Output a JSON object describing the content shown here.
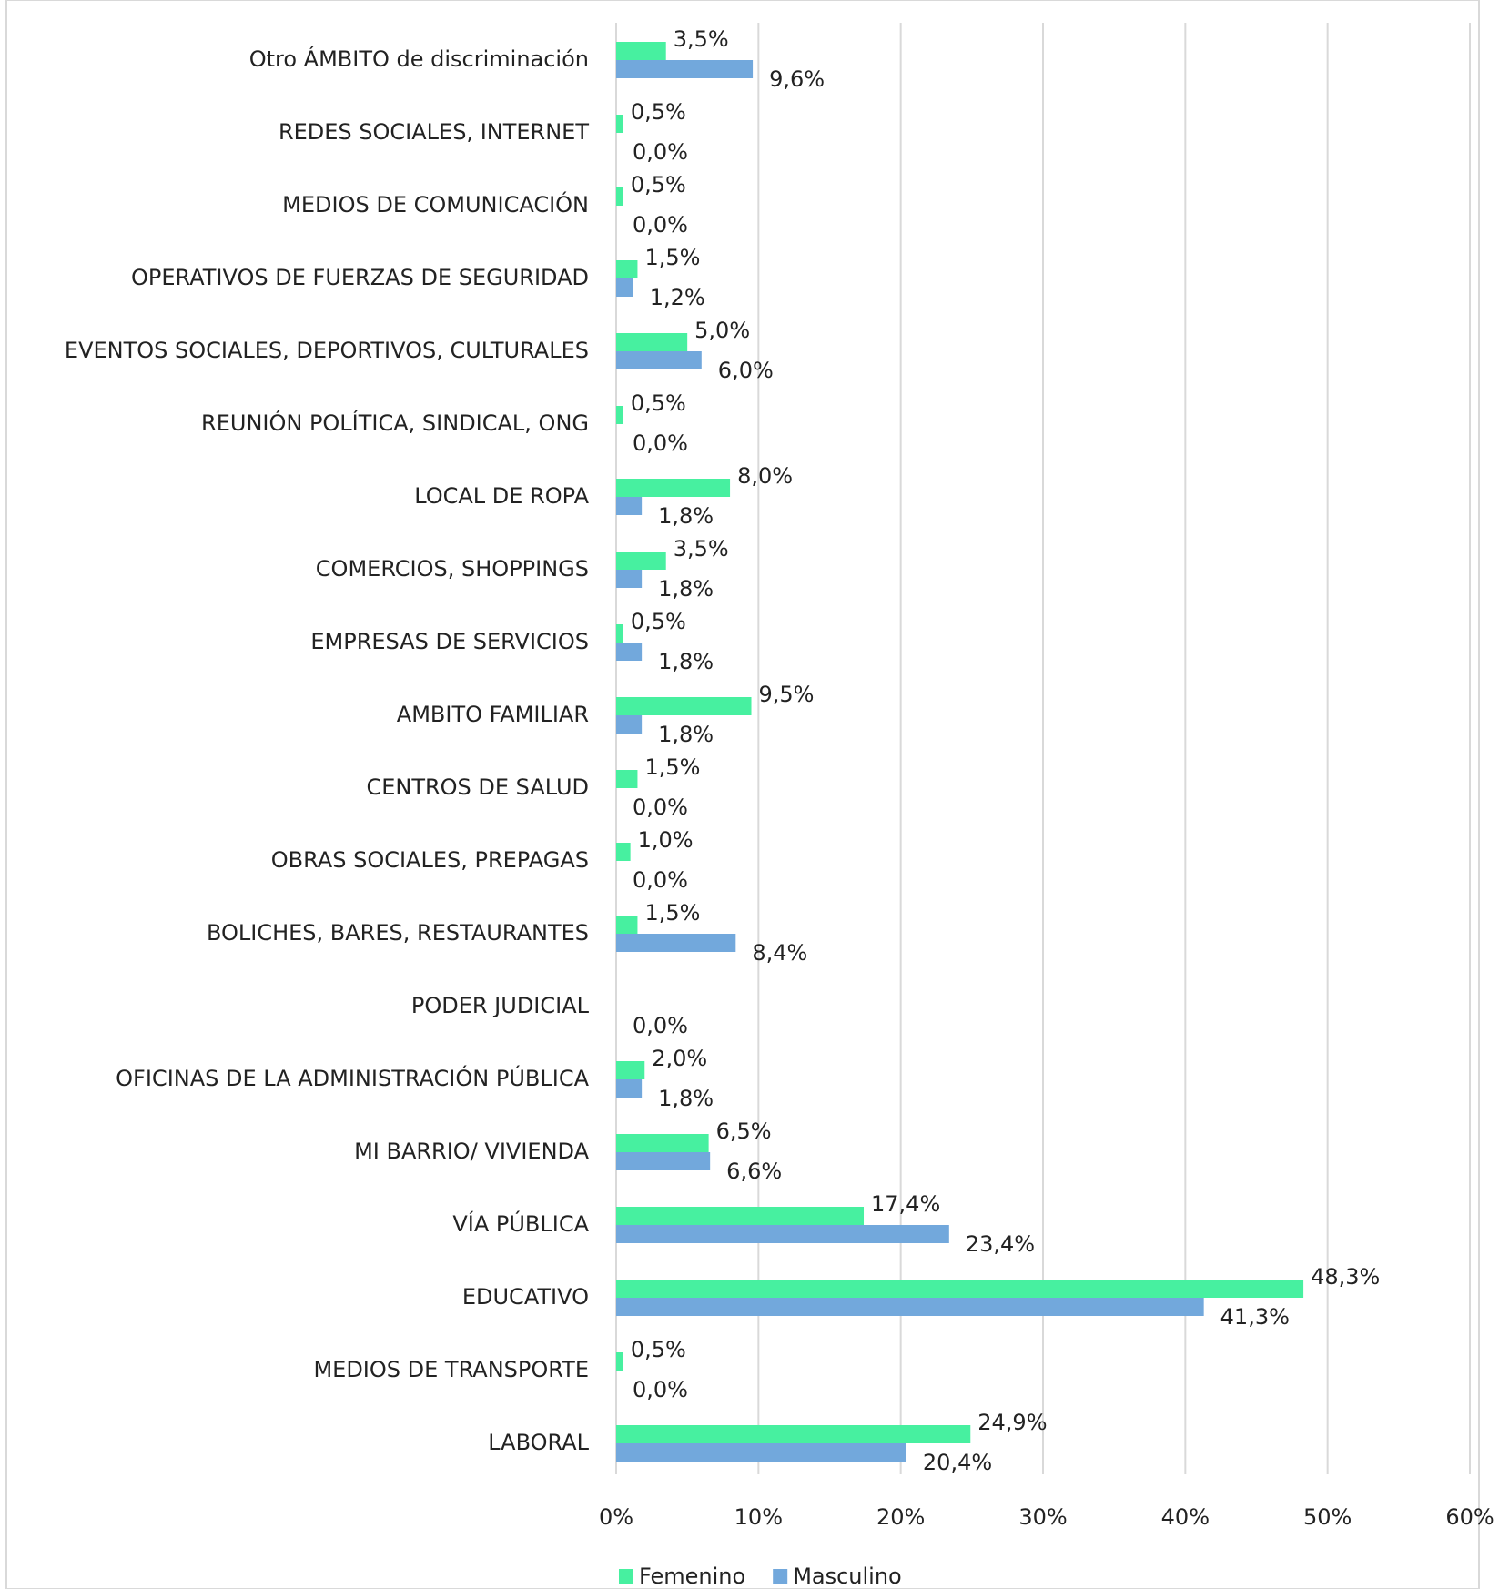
{
  "chart_data": {
    "type": "hbar",
    "categories": [
      "Otro ÁMBITO de discriminación",
      "REDES SOCIALES, INTERNET",
      "MEDIOS DE COMUNICACIÓN",
      "OPERATIVOS DE FUERZAS DE SEGURIDAD",
      "EVENTOS SOCIALES, DEPORTIVOS, CULTURALES",
      "REUNIÓN POLÍTICA, SINDICAL, ONG",
      "LOCAL DE ROPA",
      "COMERCIOS, SHOPPINGS",
      "EMPRESAS DE SERVICIOS",
      "AMBITO FAMILIAR",
      "CENTROS DE SALUD",
      "OBRAS SOCIALES, PREPAGAS",
      "BOLICHES, BARES, RESTAURANTES",
      "PODER JUDICIAL",
      "OFICINAS DE LA ADMINISTRACIÓN PÚBLICA",
      "MI BARRIO/ VIVIENDA",
      "VÍA PÚBLICA",
      "EDUCATIVO",
      "MEDIOS DE TRANSPORTE",
      "LABORAL"
    ],
    "series": [
      {
        "name": "Femenino",
        "color": "#47f0a0",
        "values": [
          3.5,
          0.5,
          0.5,
          1.5,
          5.0,
          0.5,
          8.0,
          3.5,
          0.5,
          9.5,
          1.5,
          1.0,
          1.5,
          null,
          2.0,
          6.5,
          17.4,
          48.3,
          0.5,
          24.9
        ],
        "value_labels": [
          "3,5%",
          "0,5%",
          "0,5%",
          "1,5%",
          "5,0%",
          "0,5%",
          "8,0%",
          "3,5%",
          "0,5%",
          "9,5%",
          "1,5%",
          "1,0%",
          "1,5%",
          null,
          "2,0%",
          "6,5%",
          "17,4%",
          "48,3%",
          "0,5%",
          "24,9%"
        ]
      },
      {
        "name": "Masculino",
        "color": "#72a8dc",
        "values": [
          9.6,
          0.0,
          0.0,
          1.2,
          6.0,
          0.0,
          1.8,
          1.8,
          1.8,
          1.8,
          0.0,
          0.0,
          8.4,
          0.0,
          1.8,
          6.6,
          23.4,
          41.3,
          0.0,
          20.4
        ],
        "value_labels": [
          "9,6%",
          "0,0%",
          "0,0%",
          "1,2%",
          "6,0%",
          "0,0%",
          "1,8%",
          "1,8%",
          "1,8%",
          "1,8%",
          "0,0%",
          "0,0%",
          "8,4%",
          "0,0%",
          "1,8%",
          "6,6%",
          "23,4%",
          "41,3%",
          "0,0%",
          "20,4%"
        ]
      }
    ],
    "xlim": [
      0,
      60
    ],
    "xticks": [
      {
        "value": 0,
        "label": "0%"
      },
      {
        "value": 10,
        "label": "10%"
      },
      {
        "value": 20,
        "label": "20%"
      },
      {
        "value": 30,
        "label": "30%"
      },
      {
        "value": 40,
        "label": "40%"
      },
      {
        "value": 50,
        "label": "50%"
      },
      {
        "value": 60,
        "label": "60%"
      }
    ],
    "grid": true,
    "legend": "bottom"
  }
}
